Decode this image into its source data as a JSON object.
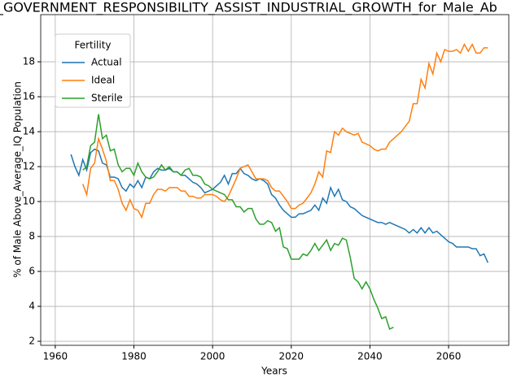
{
  "chart_data": {
    "type": "line",
    "title": "_GOVERNMENT_RESPONSIBILITY_ASSIST_INDUSTRIAL_GROWTH_for_Male_Ab",
    "x_label": "Years",
    "y_label": "% of Male Above_Average_IQ Population",
    "legend_title": "Fertility",
    "legend": "upper left",
    "grid": true,
    "xlim": [
      1956.3,
      2075.3
    ],
    "xticks": [
      1960,
      1980,
      2000,
      2020,
      2040,
      2060
    ],
    "ylim": [
      1.77,
      20.7
    ],
    "yticks": [
      2,
      4,
      6,
      8,
      10,
      12,
      14,
      16,
      18
    ],
    "x": [
      1964,
      1965,
      1966,
      1967,
      1968,
      1969,
      1970,
      1971,
      1972,
      1973,
      1974,
      1975,
      1976,
      1977,
      1978,
      1979,
      1980,
      1981,
      1982,
      1983,
      1984,
      1985,
      1986,
      1987,
      1988,
      1989,
      1990,
      1991,
      1992,
      1993,
      1994,
      1995,
      1996,
      1997,
      1998,
      1999,
      2000,
      2001,
      2002,
      2003,
      2004,
      2005,
      2006,
      2007,
      2008,
      2009,
      2010,
      2011,
      2012,
      2013,
      2014,
      2015,
      2016,
      2017,
      2018,
      2019,
      2020,
      2021,
      2022,
      2023,
      2024,
      2025,
      2026,
      2027,
      2028,
      2029,
      2030,
      2031,
      2032,
      2033,
      2034,
      2035,
      2036,
      2037,
      2038,
      2039,
      2040,
      2041,
      2042,
      2043,
      2044,
      2045,
      2046,
      2047,
      2048,
      2049,
      2050,
      2051,
      2052,
      2053,
      2054,
      2055,
      2056,
      2057,
      2058,
      2059,
      2060,
      2061,
      2062,
      2063,
      2064,
      2065,
      2066,
      2067,
      2068,
      2069,
      2070
    ],
    "series": [
      {
        "name": "Actual",
        "color": "#1f77b4",
        "values": [
          12.7,
          12.0,
          11.5,
          12.4,
          11.8,
          12.8,
          13.0,
          12.9,
          12.2,
          12.1,
          11.4,
          11.4,
          11.3,
          10.8,
          10.6,
          11.0,
          10.8,
          11.2,
          10.8,
          11.4,
          11.3,
          11.7,
          11.9,
          11.8,
          11.8,
          11.9,
          11.7,
          11.7,
          11.5,
          11.5,
          11.3,
          11.1,
          11.0,
          10.8,
          10.5,
          10.6,
          10.7,
          10.9,
          11.1,
          11.5,
          11.0,
          11.6,
          11.6,
          11.9,
          11.6,
          11.5,
          11.3,
          11.2,
          11.3,
          11.2,
          11.0,
          10.4,
          10.2,
          9.8,
          9.5,
          9.3,
          9.1,
          9.1,
          9.3,
          9.3,
          9.4,
          9.5,
          9.8,
          9.5,
          10.2,
          9.9,
          10.8,
          10.3,
          10.7,
          10.1,
          10.0,
          9.7,
          9.6,
          9.4,
          9.2,
          9.1,
          9.0,
          8.9,
          8.8,
          8.8,
          8.7,
          8.8,
          8.7,
          8.6,
          8.5,
          8.4,
          8.2,
          8.4,
          8.2,
          8.5,
          8.2,
          8.5,
          8.2,
          8.3,
          8.1,
          7.9,
          7.7,
          7.6,
          7.4,
          7.4,
          7.4,
          7.4,
          7.3,
          7.3,
          6.9,
          7.0,
          6.5
        ]
      },
      {
        "name": "Ideal",
        "color": "#ff7f0e",
        "values": [
          null,
          null,
          null,
          11.0,
          10.4,
          11.9,
          12.2,
          13.6,
          13.0,
          12.3,
          11.2,
          11.2,
          10.7,
          9.9,
          9.5,
          10.1,
          9.6,
          9.5,
          9.1,
          9.9,
          9.9,
          10.4,
          10.7,
          10.7,
          10.6,
          10.8,
          10.8,
          10.8,
          10.6,
          10.6,
          10.3,
          10.3,
          10.2,
          10.2,
          10.4,
          10.4,
          10.4,
          10.3,
          10.1,
          10.0,
          10.3,
          10.8,
          11.3,
          11.9,
          12.0,
          12.1,
          11.7,
          11.3,
          11.3,
          11.3,
          11.2,
          10.8,
          10.6,
          10.6,
          10.3,
          10.0,
          9.6,
          9.6,
          9.8,
          9.9,
          10.2,
          10.5,
          11.0,
          11.7,
          11.4,
          12.9,
          12.8,
          14.0,
          13.8,
          14.2,
          14.0,
          13.9,
          13.8,
          13.9,
          13.4,
          13.3,
          13.2,
          13.0,
          12.9,
          13.0,
          13.0,
          13.4,
          13.6,
          13.8,
          14.0,
          14.3,
          14.6,
          15.6,
          15.6,
          17.0,
          16.5,
          17.9,
          17.3,
          18.5,
          18.0,
          18.7,
          18.6,
          18.6,
          18.7,
          18.5,
          19.0,
          18.6,
          19.0,
          18.5,
          18.5,
          18.8,
          18.8
        ]
      },
      {
        "name": "Sterile",
        "color": "#2ca02c",
        "values": [
          null,
          null,
          null,
          11.8,
          12.0,
          13.2,
          13.4,
          15.0,
          13.6,
          13.8,
          12.9,
          13.0,
          12.1,
          11.7,
          11.9,
          11.9,
          11.5,
          12.2,
          11.7,
          11.4,
          11.3,
          11.4,
          11.7,
          12.1,
          11.8,
          12.0,
          11.7,
          11.7,
          11.5,
          11.8,
          11.9,
          11.5,
          11.5,
          11.4,
          11.0,
          10.9,
          10.7,
          10.6,
          10.5,
          10.4,
          10.1,
          10.1,
          9.7,
          9.7,
          9.4,
          9.6,
          9.6,
          9.0,
          8.7,
          8.7,
          8.9,
          8.8,
          8.3,
          8.5,
          7.4,
          7.3,
          6.7,
          6.7,
          6.7,
          7.0,
          6.9,
          7.2,
          7.6,
          7.2,
          7.5,
          7.8,
          7.2,
          7.6,
          7.5,
          7.9,
          7.8,
          6.8,
          5.6,
          5.4,
          5.0,
          5.4,
          5.0,
          4.4,
          3.9,
          3.3,
          3.4,
          2.7,
          2.8,
          null,
          null,
          null,
          null,
          null,
          null,
          null,
          null,
          null,
          null,
          null,
          null,
          null,
          null,
          null,
          null,
          null,
          null,
          null,
          null,
          null,
          null,
          null,
          null
        ]
      }
    ]
  }
}
